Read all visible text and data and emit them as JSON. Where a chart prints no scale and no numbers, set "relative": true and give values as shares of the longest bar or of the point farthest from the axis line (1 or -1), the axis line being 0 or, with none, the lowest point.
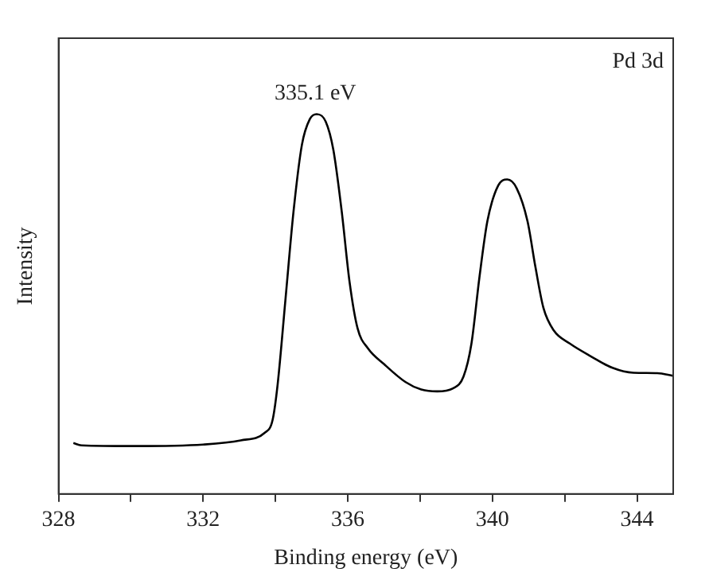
{
  "chart_data": {
    "type": "line",
    "xlabel": "Binding energy (eV)",
    "ylabel": "Intensity",
    "relative": true,
    "xlim": [
      328,
      345
    ],
    "xticks": [
      328,
      {
        "value": 330,
        "label": null
      },
      332,
      {
        "value": 334,
        "label": null
      },
      336,
      {
        "value": 338,
        "label": null
      },
      340,
      {
        "value": 342,
        "label": null
      },
      344
    ],
    "x": [
      328.41,
      328.63,
      330.1,
      332.0,
      333.04,
      333.7,
      333.92,
      334.06,
      334.28,
      334.5,
      334.73,
      334.95,
      335.14,
      335.39,
      335.6,
      335.83,
      336.05,
      336.27,
      336.56,
      337.0,
      337.59,
      338.03,
      338.47,
      338.91,
      339.2,
      339.42,
      339.64,
      339.86,
      340.16,
      340.41,
      340.67,
      340.97,
      341.19,
      341.41,
      341.7,
      342.14,
      342.73,
      343.32,
      343.9,
      344.56,
      345.0
    ],
    "series": [
      {
        "color": "#000000",
        "values": [
          0.134,
          0.128,
          0.126,
          0.13,
          0.141,
          0.161,
          0.195,
          0.289,
          0.517,
          0.745,
          0.919,
          0.987,
          1,
          0.98,
          0.906,
          0.745,
          0.557,
          0.436,
          0.383,
          0.342,
          0.295,
          0.275,
          0.27,
          0.278,
          0.309,
          0.396,
          0.57,
          0.718,
          0.812,
          0.828,
          0.805,
          0.718,
          0.597,
          0.49,
          0.43,
          0.396,
          0.362,
          0.332,
          0.319,
          0.318,
          0.311
        ]
      }
    ],
    "annotations": [
      {
        "text": "335.1 eV",
        "x": 335.1,
        "y": 1
      },
      "Pd 3d"
    ],
    "grid": false,
    "legend": false,
    "marker": "none",
    "line_style": "solid"
  }
}
